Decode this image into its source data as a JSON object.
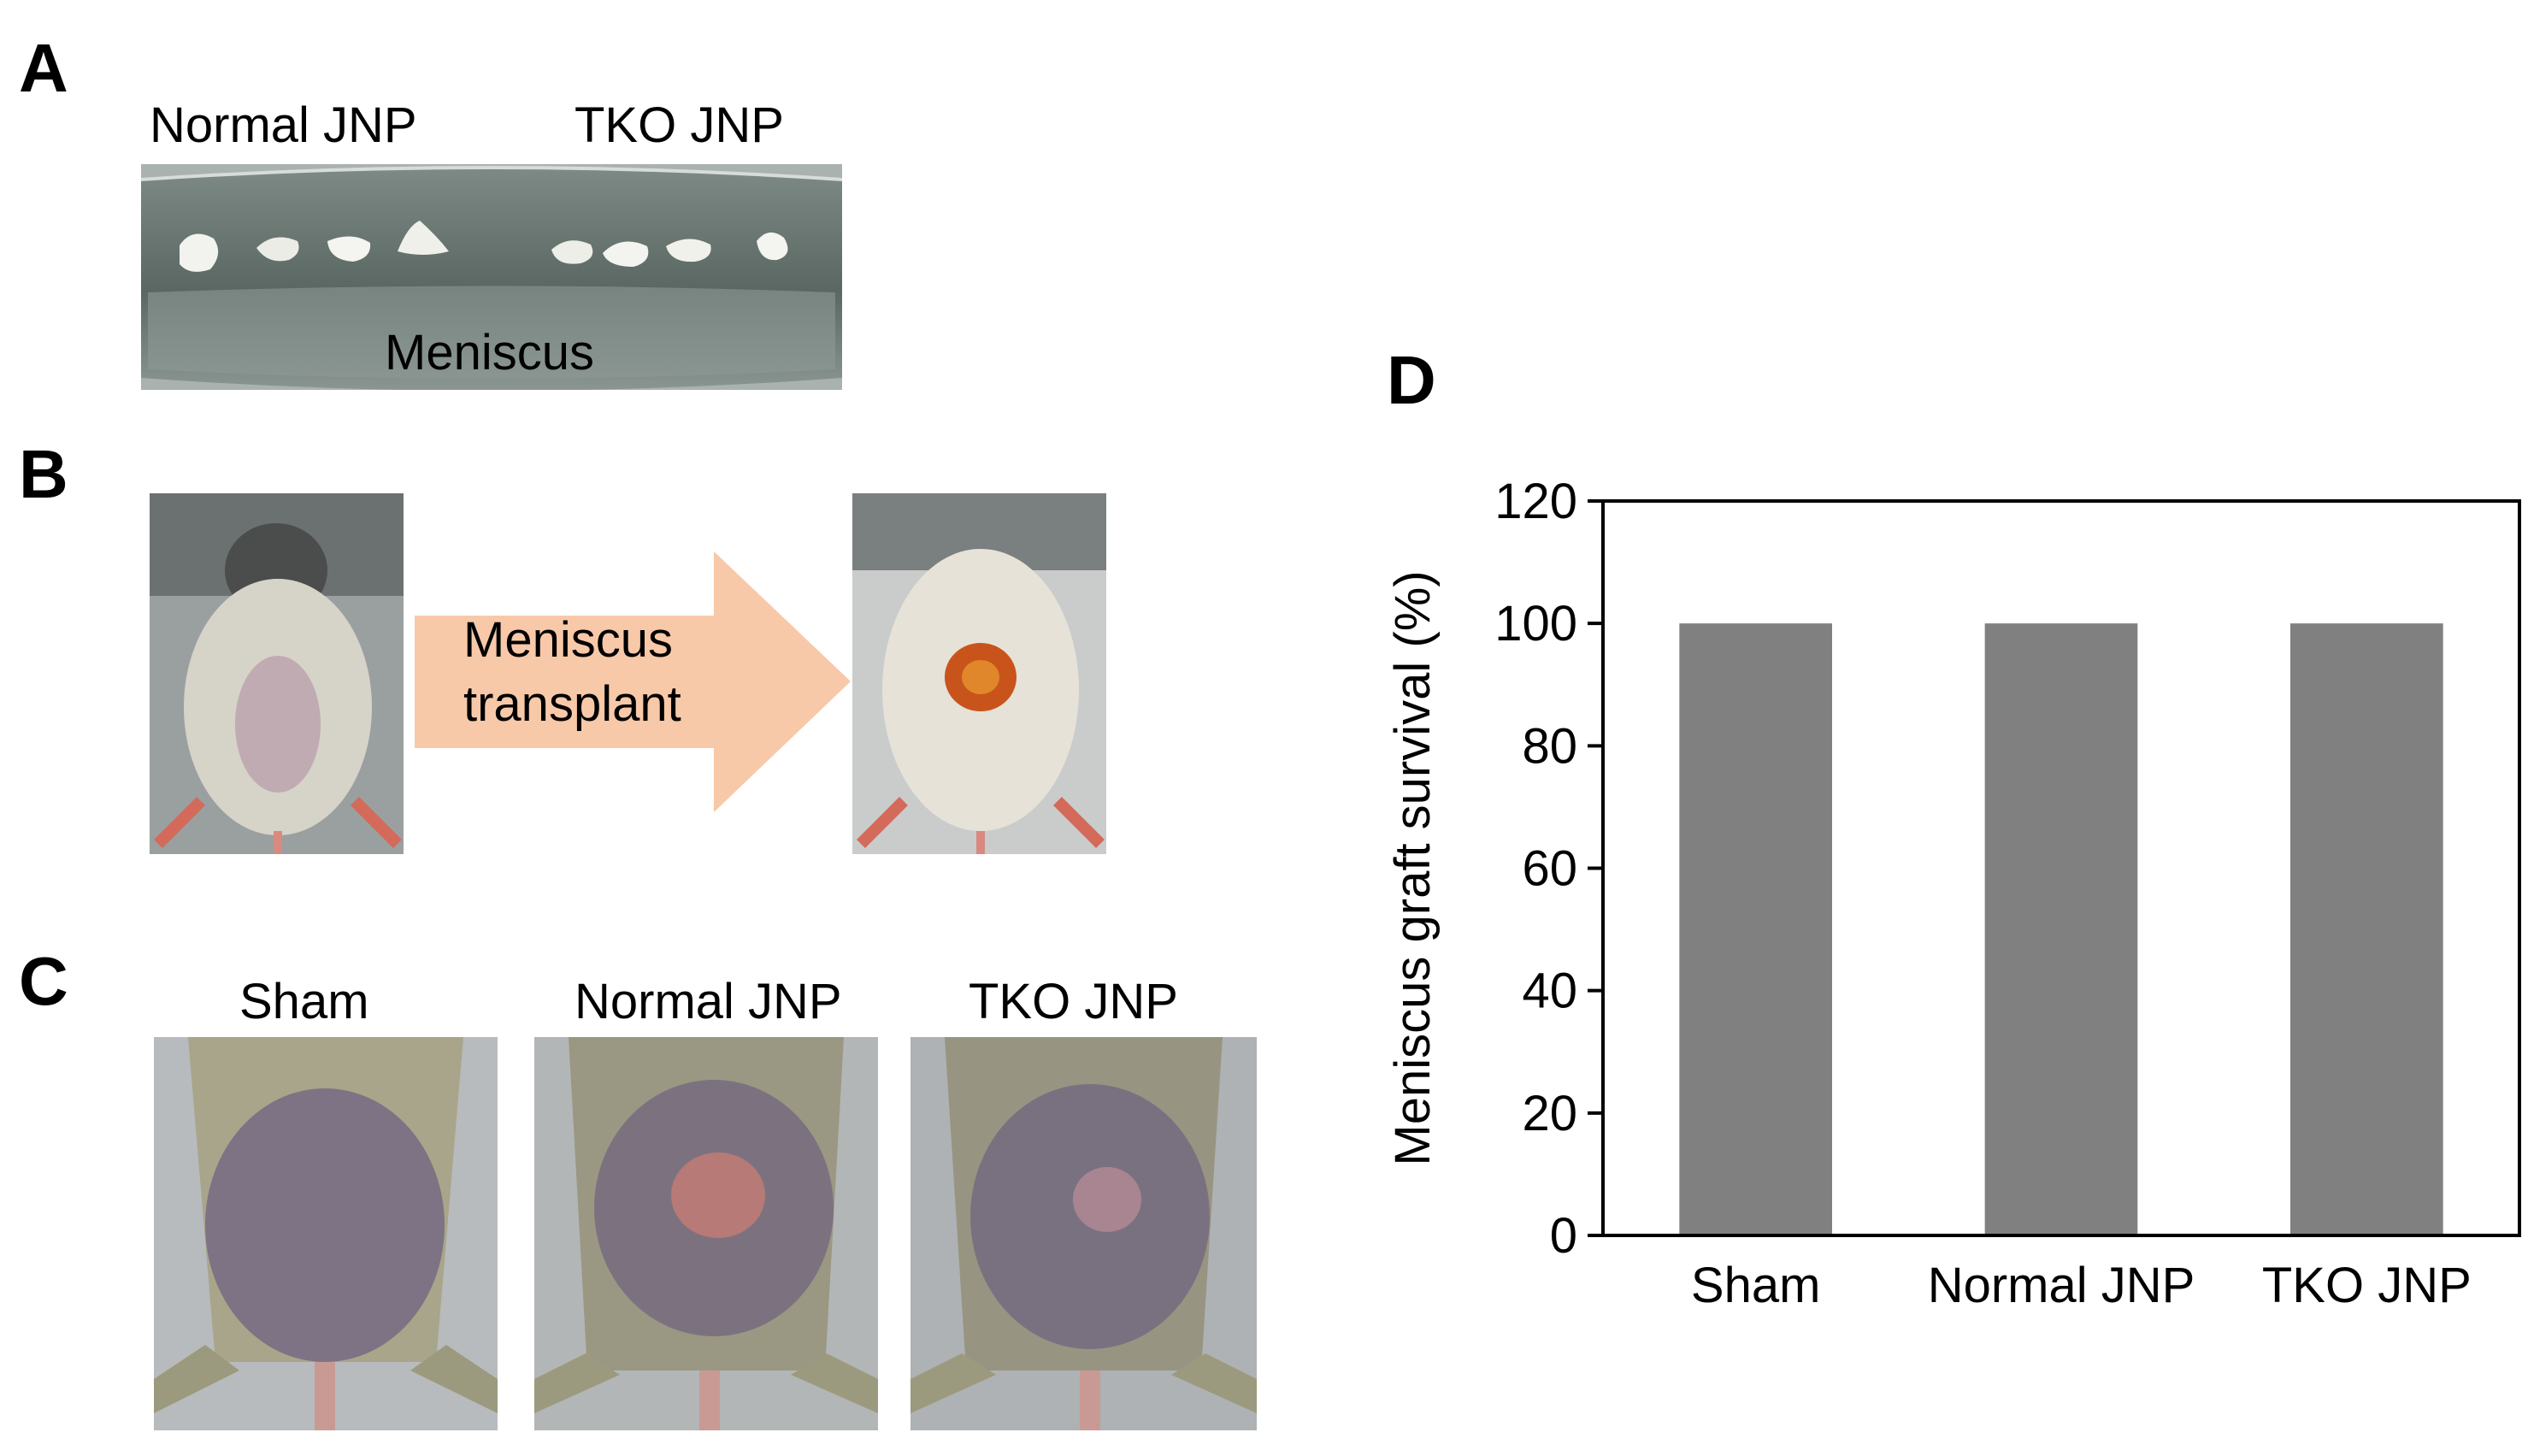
{
  "panels": {
    "a": {
      "letter": "A",
      "label_left": "Normal  JNP",
      "label_right": "TKO JNP",
      "dish_label": "Meniscus"
    },
    "b": {
      "letter": "B",
      "arrow_text_line1": "Meniscus",
      "arrow_text_line2": "transplant"
    },
    "c": {
      "letter": "C",
      "labels": [
        "Sham",
        "Normal  JNP",
        "TKO JNP"
      ]
    },
    "d": {
      "letter": "D"
    }
  },
  "colors": {
    "bar": "#808080",
    "arrow": "#f8c9a8",
    "dish": "#5f6b66"
  },
  "chart_data": {
    "type": "bar",
    "categories": [
      "Sham",
      "Normal  JNP",
      "TKO JNP"
    ],
    "values": [
      100,
      100,
      100
    ],
    "title": "",
    "xlabel": "",
    "ylabel": "Meniscus graft survival (%)",
    "ylim": [
      0,
      120
    ],
    "yticks": [
      0,
      20,
      40,
      60,
      80,
      100,
      120
    ]
  }
}
